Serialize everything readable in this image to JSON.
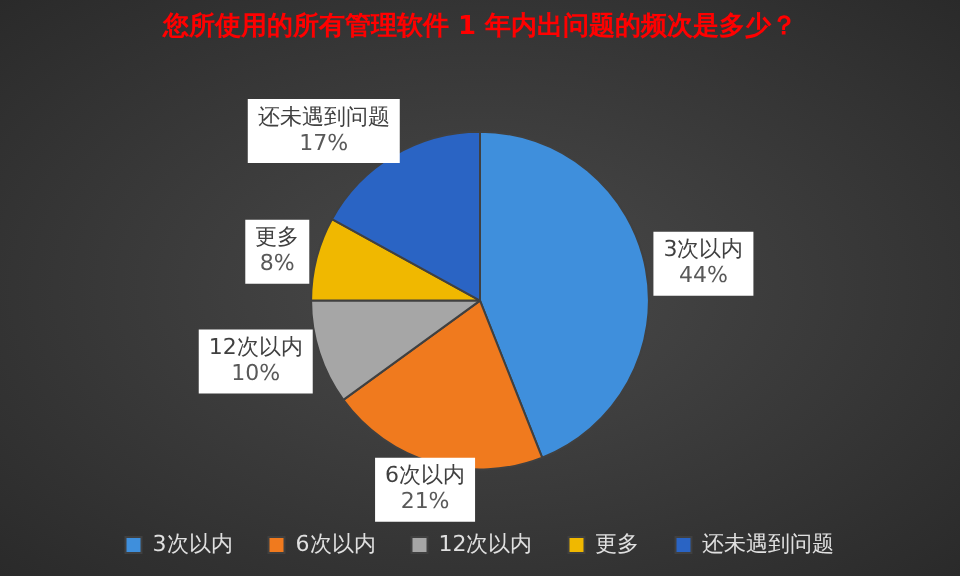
{
  "chart_data": {
    "type": "pie",
    "title": "您所使用的所有管理软件 1 年内出问题的频次是多少？",
    "categories": [
      "3次以内",
      "6次以内",
      "12次以内",
      "更多",
      "还未遇到问题"
    ],
    "values": [
      44,
      21,
      10,
      8,
      17
    ],
    "value_labels": [
      "44%",
      "21%",
      "10%",
      "8%",
      "17%"
    ],
    "colors": [
      "#3f8fdc",
      "#f07a1e",
      "#a6a6a6",
      "#f0b800",
      "#2a64c4"
    ],
    "legend": "bottom"
  }
}
